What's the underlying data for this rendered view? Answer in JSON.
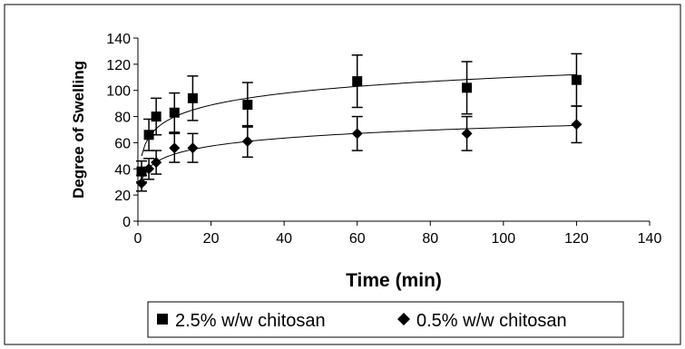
{
  "chart_data": {
    "type": "scatter",
    "xlabel": "Time (min)",
    "ylabel": "Degree of Swelling",
    "xlim": [
      0,
      140
    ],
    "ylim": [
      0,
      140
    ],
    "xticks": [
      0,
      20,
      40,
      60,
      80,
      100,
      120,
      140
    ],
    "yticks": [
      0,
      20,
      40,
      60,
      80,
      100,
      120,
      140
    ],
    "grid": false,
    "legend_position": "bottom",
    "error_bars": true,
    "trendlines": true,
    "series": [
      {
        "name": "2.5% w/w chitosan",
        "marker": "square",
        "color": "#000000",
        "x": [
          1,
          3,
          5,
          10,
          15,
          30,
          60,
          90,
          120
        ],
        "y": [
          38,
          66,
          80,
          83,
          94,
          89,
          107,
          102,
          108
        ],
        "error": [
          8,
          12,
          14,
          15,
          17,
          17,
          20,
          20,
          20
        ]
      },
      {
        "name": "0.5% w/w chitosan",
        "marker": "diamond",
        "color": "#000000",
        "x": [
          1,
          3,
          5,
          10,
          15,
          30,
          60,
          90,
          120
        ],
        "y": [
          29,
          40,
          45,
          56,
          56,
          61,
          67,
          67,
          74
        ],
        "error": [
          6,
          8,
          9,
          11,
          11,
          12,
          13,
          13,
          14
        ]
      }
    ]
  }
}
